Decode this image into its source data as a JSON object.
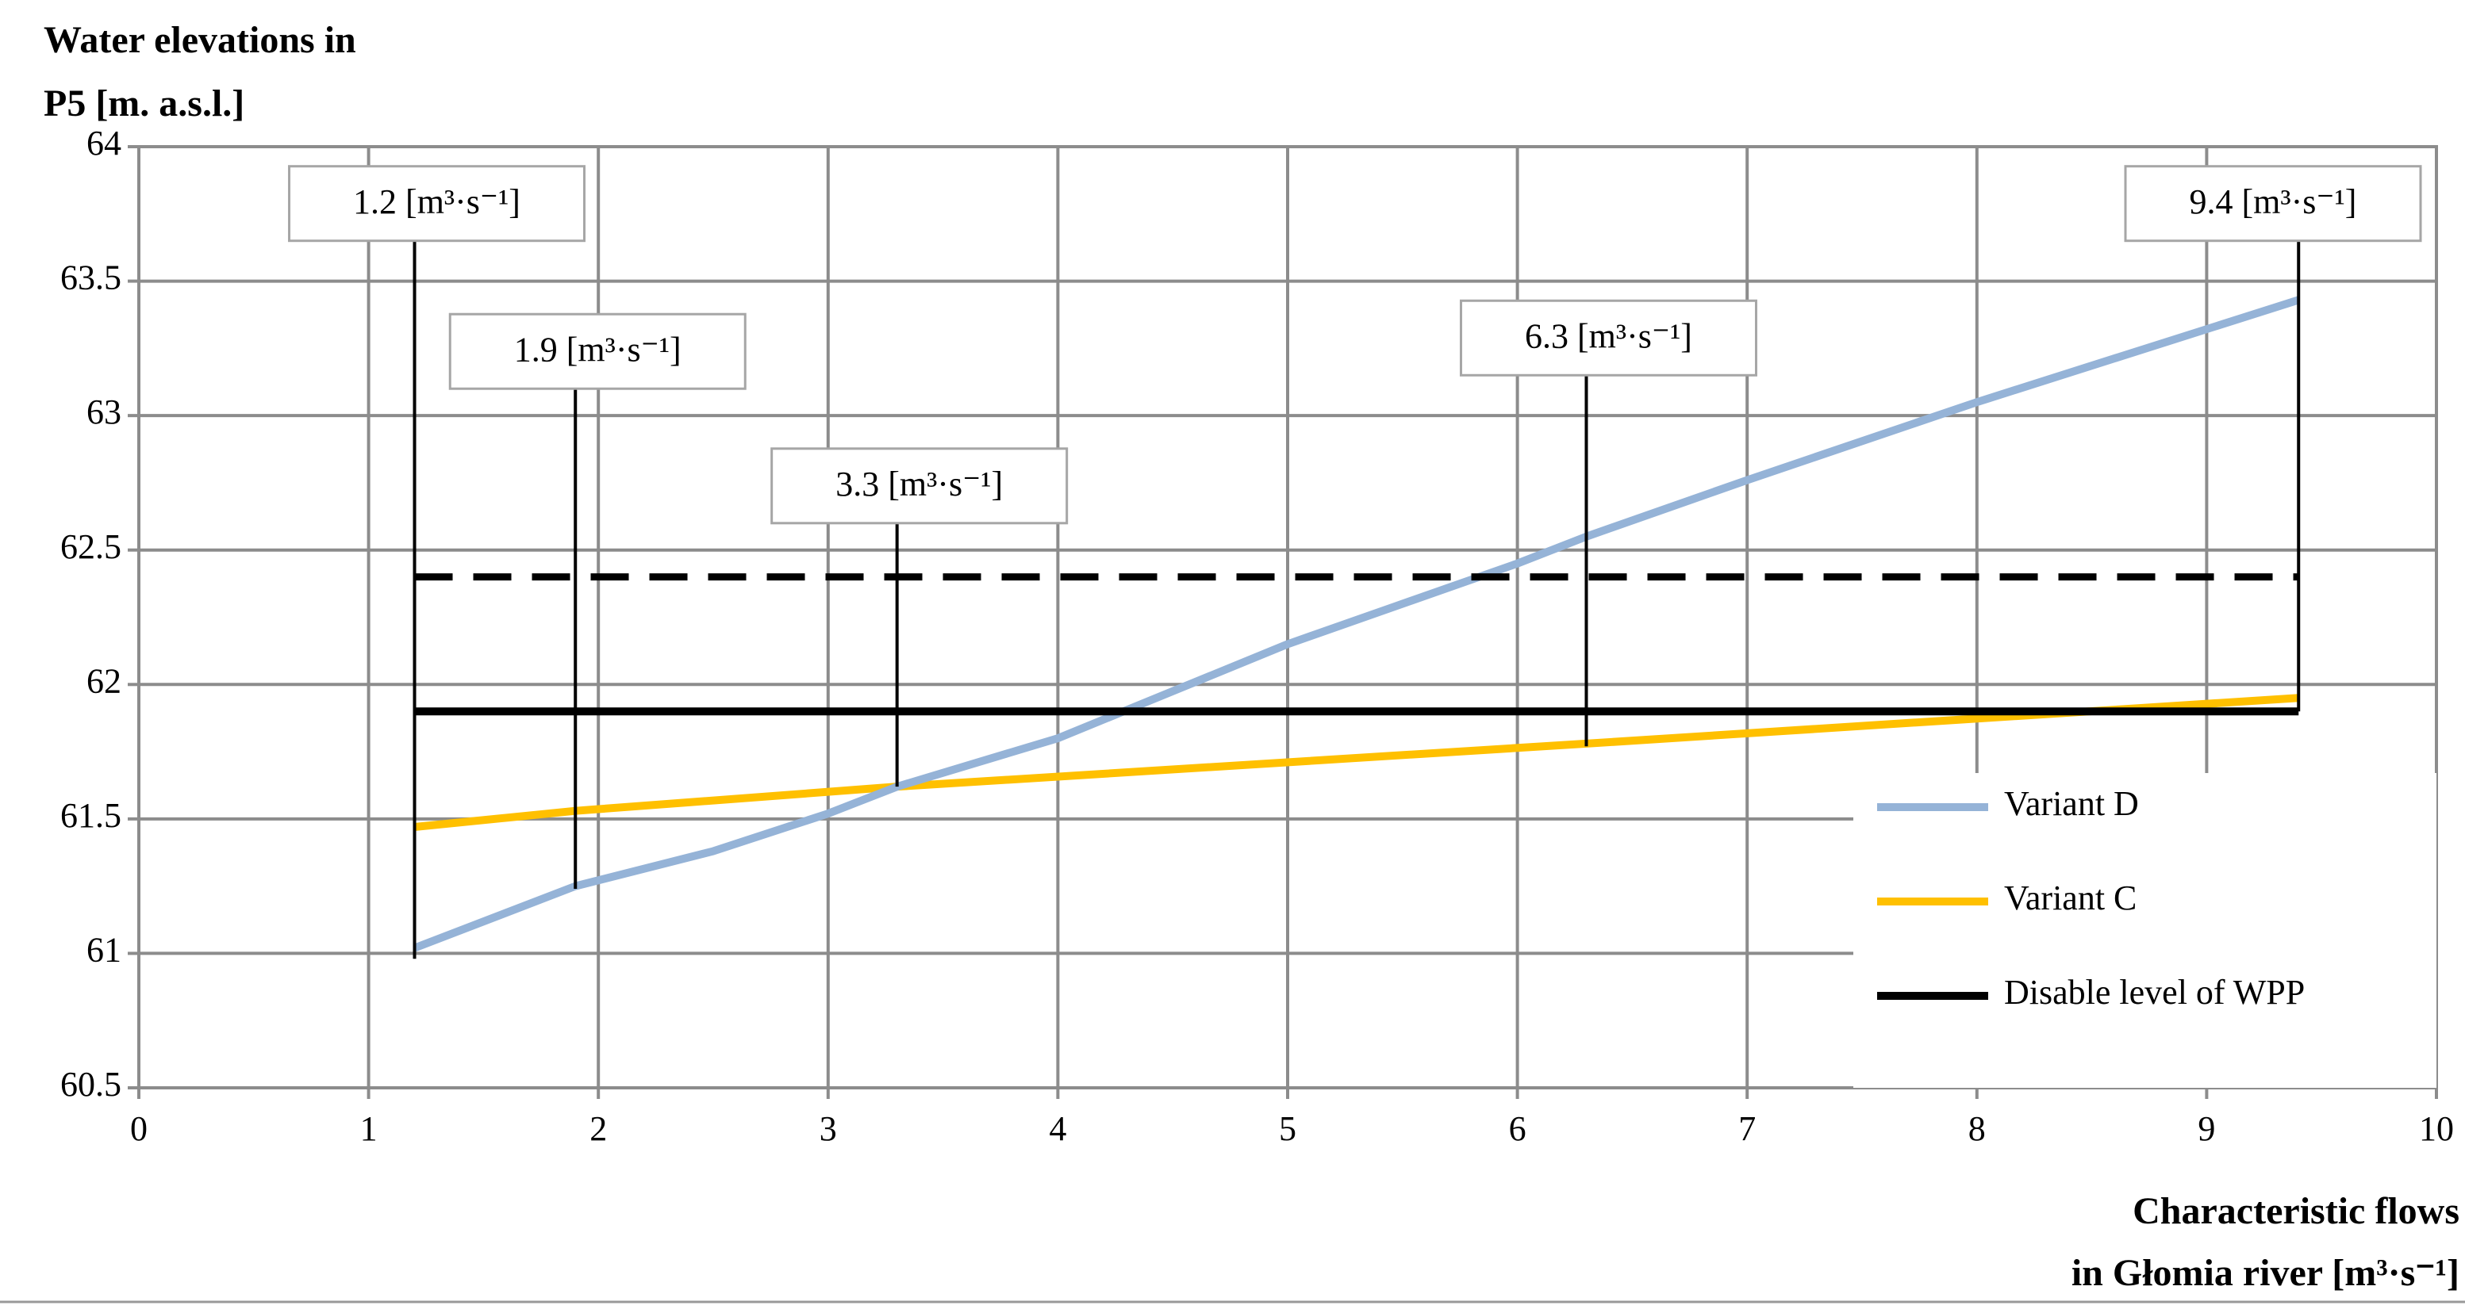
{
  "chart_data": {
    "type": "line",
    "y_label": [
      "Water elevations in",
      "P5 [m. a.s.l.]"
    ],
    "x_label": [
      "Characteristic flows",
      "in Głomia river  [m³·s⁻¹]"
    ],
    "xlim": [
      0,
      10
    ],
    "xticks": [
      0,
      1,
      2,
      3,
      4,
      5,
      6,
      7,
      8,
      9,
      10
    ],
    "ylim": [
      60.5,
      64
    ],
    "yticks": [
      60.5,
      61,
      61.5,
      62,
      62.5,
      63,
      63.5,
      64
    ],
    "grid": true,
    "legend": "lower right",
    "series": [
      {
        "name": "Variant D",
        "color": "#95b3d7",
        "style": "solid",
        "x": [
          1.2,
          1.9,
          2.5,
          3,
          3.3,
          4,
          5,
          6,
          6.3,
          7,
          8,
          9.4
        ],
        "values": [
          61.02,
          61.25,
          61.38,
          61.52,
          61.62,
          61.8,
          62.15,
          62.45,
          62.55,
          62.76,
          63.05,
          63.43
        ]
      },
      {
        "name": "Variant C",
        "color": "#ffc000",
        "style": "solid",
        "x": [
          1.2,
          1.9,
          3.3,
          6.3,
          9.4
        ],
        "values": [
          61.47,
          61.53,
          61.62,
          61.78,
          61.95
        ]
      },
      {
        "name": "Disable level of WPP",
        "color": "#000000",
        "style": "solid",
        "x": [
          1.2,
          9.4
        ],
        "values": [
          61.9,
          61.9
        ]
      },
      {
        "color": "#000000",
        "style": "dashed",
        "x": [
          1.2,
          9.4
        ],
        "values": [
          62.4,
          62.4
        ]
      }
    ],
    "annotations": [
      {
        "x": 1.2,
        "y_range": [
          60.98,
          63.65
        ],
        "label": "1.2 [m³·s⁻¹]"
      },
      {
        "x": 1.9,
        "y_range": [
          61.24,
          63.1
        ],
        "label": "1.9 [m³·s⁻¹]"
      },
      {
        "x": 3.3,
        "y_range": [
          61.62,
          62.6
        ],
        "label": "3.3 [m³·s⁻¹]"
      },
      {
        "x": 6.3,
        "y_range": [
          61.77,
          63.15
        ],
        "label": "6.3 [m³·s⁻¹]"
      },
      {
        "x": 9.4,
        "y_range": [
          61.9,
          63.65
        ],
        "label": "9.4 [m³·s⁻¹]"
      }
    ]
  }
}
